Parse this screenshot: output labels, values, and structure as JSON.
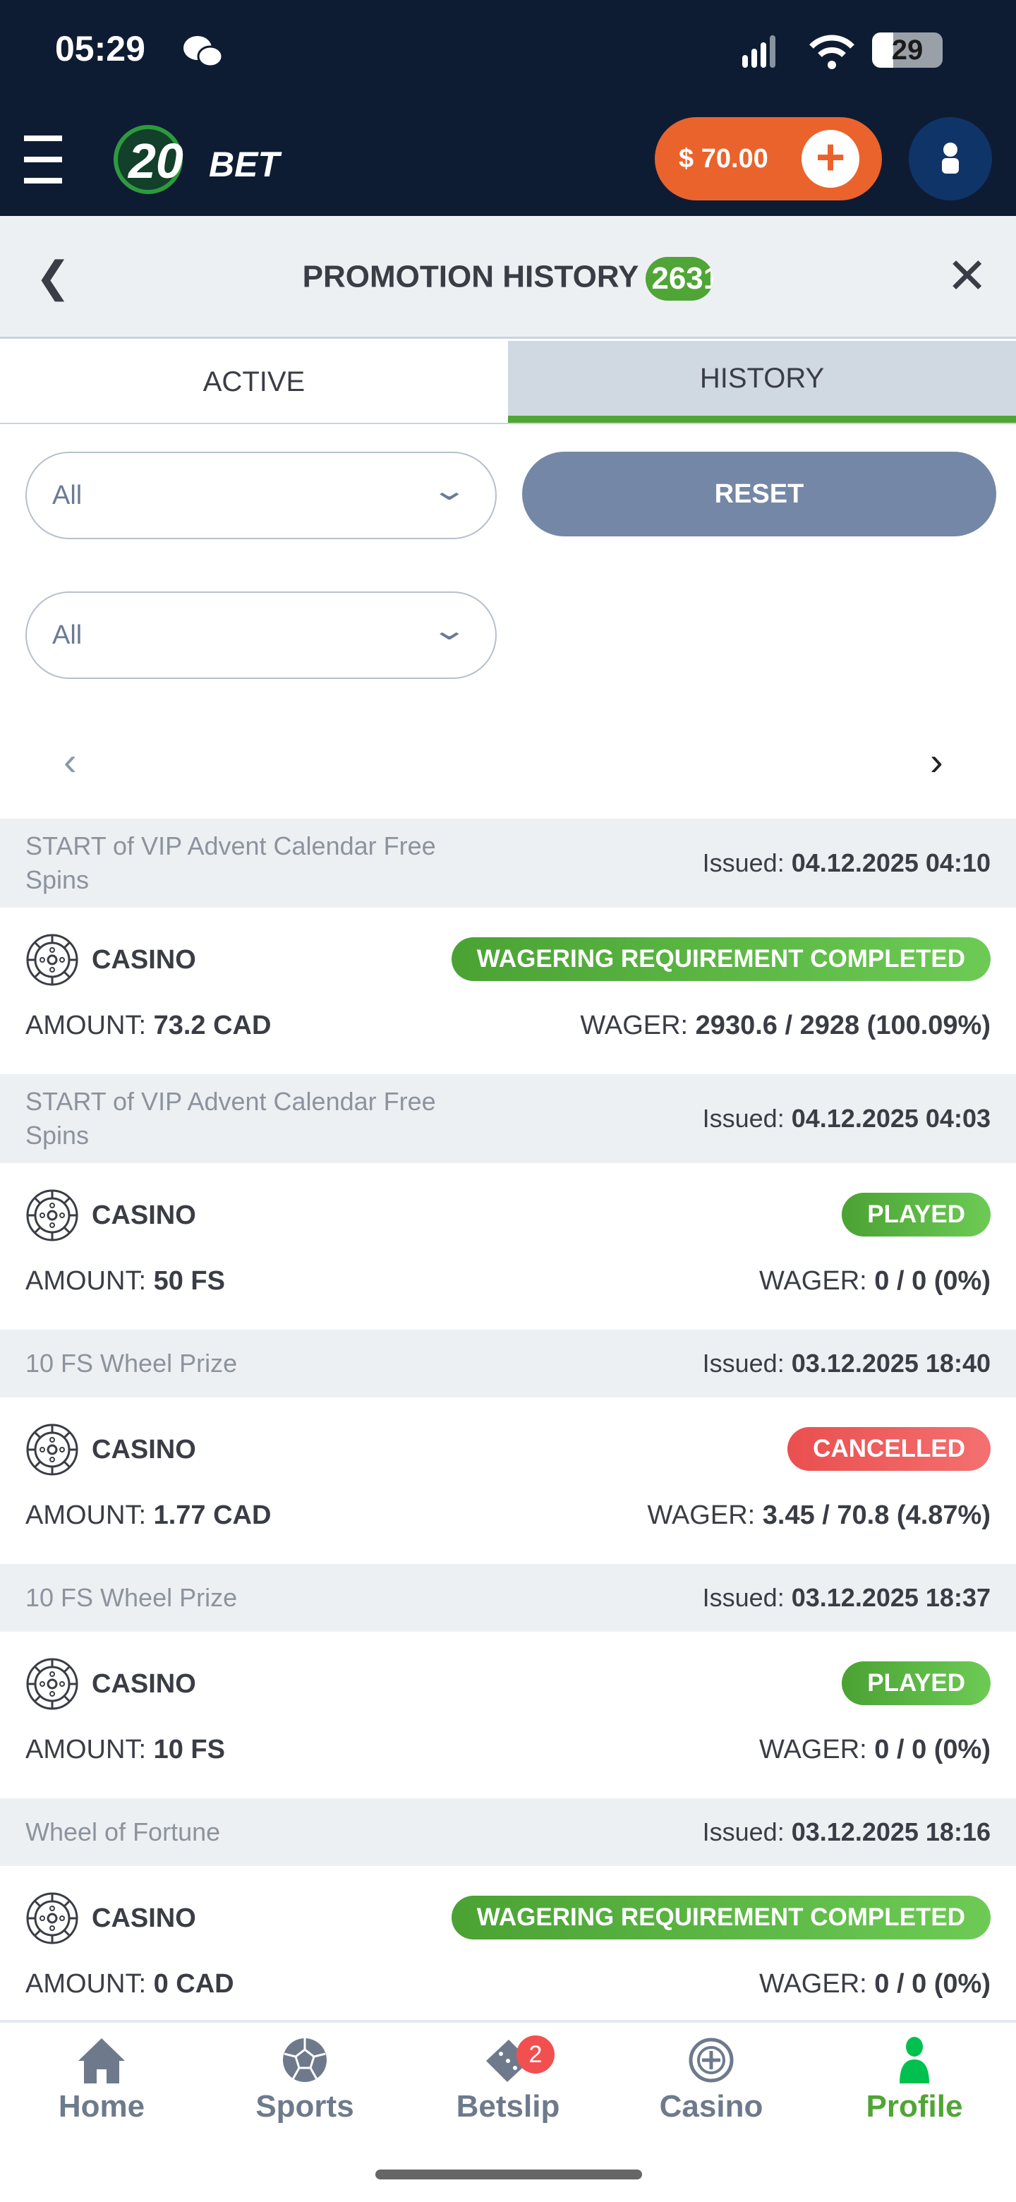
{
  "status_bar": {
    "time": "05:29",
    "battery": "29"
  },
  "header": {
    "logo": "20BET",
    "balance": "$ 70.00"
  },
  "page": {
    "title": "PROMOTION HISTORY",
    "count": "2631"
  },
  "tabs": [
    {
      "label": "ACTIVE",
      "selected": false
    },
    {
      "label": "HISTORY",
      "selected": true
    }
  ],
  "filters": {
    "filter1": "All",
    "filter2": "All",
    "reset": "RESET"
  },
  "colors": {
    "completed": "#4fa535",
    "played": "#4fa535",
    "cancelled": "#ef5350",
    "accent": "#4fa535",
    "balance": "#ea632c"
  },
  "promotions": [
    {
      "name": "START of VIP Advent Calendar Free Spins",
      "issued_label": "Issued:",
      "issued": "04.12.2025 04:10",
      "category": "CASINO",
      "status": "WAGERING REQUIREMENT COMPLETED",
      "amount_label": "AMOUNT:",
      "amount": "73.2 CAD",
      "wager_label": "WAGER:",
      "wager": "2930.6 / 2928 (100.09%)"
    },
    {
      "name": "START of VIP Advent Calendar Free Spins",
      "issued_label": "Issued:",
      "issued": "04.12.2025 04:03",
      "category": "CASINO",
      "status": "PLAYED",
      "amount_label": "AMOUNT:",
      "amount": "50 FS",
      "wager_label": "WAGER:",
      "wager": "0 / 0 (0%)"
    },
    {
      "name": "10 FS Wheel Prize",
      "issued_label": "Issued:",
      "issued": "03.12.2025 18:40",
      "category": "CASINO",
      "status": "CANCELLED",
      "amount_label": "AMOUNT:",
      "amount": "1.77 CAD",
      "wager_label": "WAGER:",
      "wager": "3.45 / 70.8 (4.87%)"
    },
    {
      "name": "10 FS Wheel Prize",
      "issued_label": "Issued:",
      "issued": "03.12.2025 18:37",
      "category": "CASINO",
      "status": "PLAYED",
      "amount_label": "AMOUNT:",
      "amount": "10 FS",
      "wager_label": "WAGER:",
      "wager": "0 / 0 (0%)"
    },
    {
      "name": "Wheel of Fortune",
      "issued_label": "Issued:",
      "issued": "03.12.2025 18:16",
      "category": "CASINO",
      "status": "WAGERING REQUIREMENT COMPLETED",
      "amount_label": "AMOUNT:",
      "amount": "0 CAD",
      "wager_label": "WAGER:",
      "wager": "0 / 0 (0%)"
    }
  ],
  "bottom_nav": [
    {
      "label": "Home",
      "icon": "home-icon"
    },
    {
      "label": "Sports",
      "icon": "soccer-ball-icon"
    },
    {
      "label": "Betslip",
      "icon": "ticket-icon",
      "badge": "2"
    },
    {
      "label": "Casino",
      "icon": "roulette-icon"
    },
    {
      "label": "Profile",
      "icon": "person-icon",
      "active": true
    }
  ]
}
